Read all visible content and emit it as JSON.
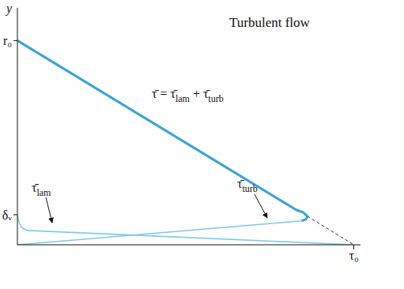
{
  "chart_data": {
    "type": "line",
    "title": "Turbulent flow",
    "ylabel": "y",
    "xlim": [
      0,
      1.02
    ],
    "ylim": [
      0,
      1.16
    ],
    "xticks": [
      {
        "value": 1,
        "label": "τ₀"
      }
    ],
    "yticks": [
      {
        "value": 0.147,
        "label": "δᵥ"
      },
      {
        "value": 1,
        "label": "r₀"
      }
    ],
    "grid": false,
    "series": [
      {
        "label": [
          "τ̄ = τ̄",
          {
            "sub": "lam"
          },
          " + τ̄",
          {
            "sub": "turb"
          }
        ],
        "color": "#3ba3d8",
        "line_style": "solid",
        "x": [
          0,
          0.83,
          0.85,
          0.862,
          0.858,
          0.845
        ],
        "values": [
          1,
          0.17,
          0.158,
          0.14,
          0.125,
          0.117
        ]
      },
      {
        "label": [
          "τ̄",
          {
            "sub": "turb"
          }
        ],
        "color": "#7ccbea",
        "line_style": "solid",
        "x": [
          0.845,
          0
        ],
        "values": [
          0.117,
          0
        ]
      },
      {
        "label": [
          "τ̄",
          {
            "sub": "lam"
          }
        ],
        "color": "#7ccbea",
        "line_style": "solid",
        "x": [
          0,
          0.004,
          0.012,
          0.03,
          1
        ],
        "values": [
          0.147,
          0.115,
          0.085,
          0.07,
          0
        ]
      },
      {
        "color": "#333333",
        "line_style": "dashed",
        "x": [
          0.862,
          1
        ],
        "values": [
          0.14,
          0
        ]
      }
    ]
  }
}
